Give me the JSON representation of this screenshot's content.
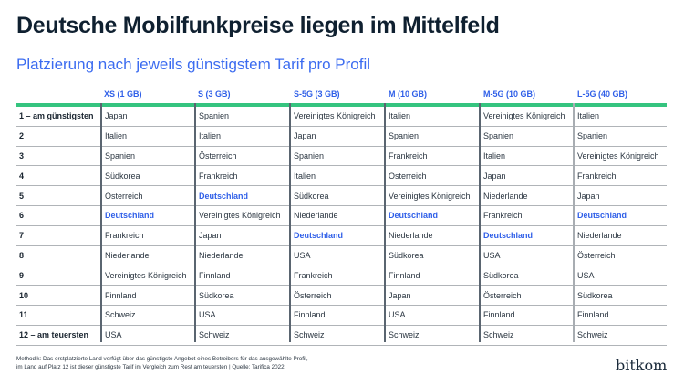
{
  "title": "Deutsche Mobilfunkpreise liegen im Mittelfeld",
  "subtitle": "Platzierung nach jeweils günstigstem Tarif pro Profil",
  "table": {
    "columns": [
      "XS (1 GB)",
      "S (3 GB)",
      "S-5G (3 GB)",
      "M (10 GB)",
      "M-5G (10 GB)",
      "L-5G (40 GB)"
    ],
    "rows": [
      {
        "rank": "1 – am günstigsten",
        "cells": [
          "Japan",
          "Spanien",
          "Vereinigtes Königreich",
          "Italien",
          "Vereinigtes Königreich",
          "Italien"
        ]
      },
      {
        "rank": "2",
        "cells": [
          "Italien",
          "Italien",
          "Japan",
          "Spanien",
          "Spanien",
          "Spanien"
        ]
      },
      {
        "rank": "3",
        "cells": [
          "Spanien",
          "Österreich",
          "Spanien",
          "Frankreich",
          "Italien",
          "Vereinigtes Königreich"
        ]
      },
      {
        "rank": "4",
        "cells": [
          "Südkorea",
          "Frankreich",
          "Italien",
          "Österreich",
          "Japan",
          "Frankreich"
        ]
      },
      {
        "rank": "5",
        "cells": [
          "Österreich",
          "Deutschland",
          "Südkorea",
          "Vereinigtes Königreich",
          "Niederlande",
          "Japan"
        ]
      },
      {
        "rank": "6",
        "cells": [
          "Deutschland",
          "Vereinigtes Königreich",
          "Niederlande",
          "Deutschland",
          "Frankreich",
          "Deutschland"
        ]
      },
      {
        "rank": "7",
        "cells": [
          "Frankreich",
          "Japan",
          "Deutschland",
          "Niederlande",
          "Deutschland",
          "Niederlande"
        ]
      },
      {
        "rank": "8",
        "cells": [
          "Niederlande",
          "Niederlande",
          "USA",
          "Südkorea",
          "USA",
          "Österreich"
        ]
      },
      {
        "rank": "9",
        "cells": [
          "Vereinigtes Königreich",
          "Finnland",
          "Frankreich",
          "Finnland",
          "Südkorea",
          "USA"
        ]
      },
      {
        "rank": "10",
        "cells": [
          "Finnland",
          "Südkorea",
          "Österreich",
          "Japan",
          "Österreich",
          "Südkorea"
        ]
      },
      {
        "rank": "11",
        "cells": [
          "Schweiz",
          "USA",
          "Finnland",
          "USA",
          "Finnland",
          "Finnland"
        ]
      },
      {
        "rank": "12 – am teuersten",
        "cells": [
          "USA",
          "Schweiz",
          "Schweiz",
          "Schweiz",
          "Schweiz",
          "Schweiz"
        ]
      }
    ],
    "highlight_value": "Deutschland"
  },
  "footnote": {
    "line1": "Methodik: Das erstplatzierte Land verfügt über das günstigste Angebot eines Betreibers für das ausgewählte Profil,",
    "line2": "im Land auf  Platz 12 ist dieser günstigste Tarif im Vergleich zum Rest am teuersten | Quelle: Tarifica 2022"
  },
  "logo": "bitkom",
  "colors": {
    "accent_blue": "#2f5fe8",
    "accent_green": "#35c47f",
    "title": "#0f2030"
  }
}
